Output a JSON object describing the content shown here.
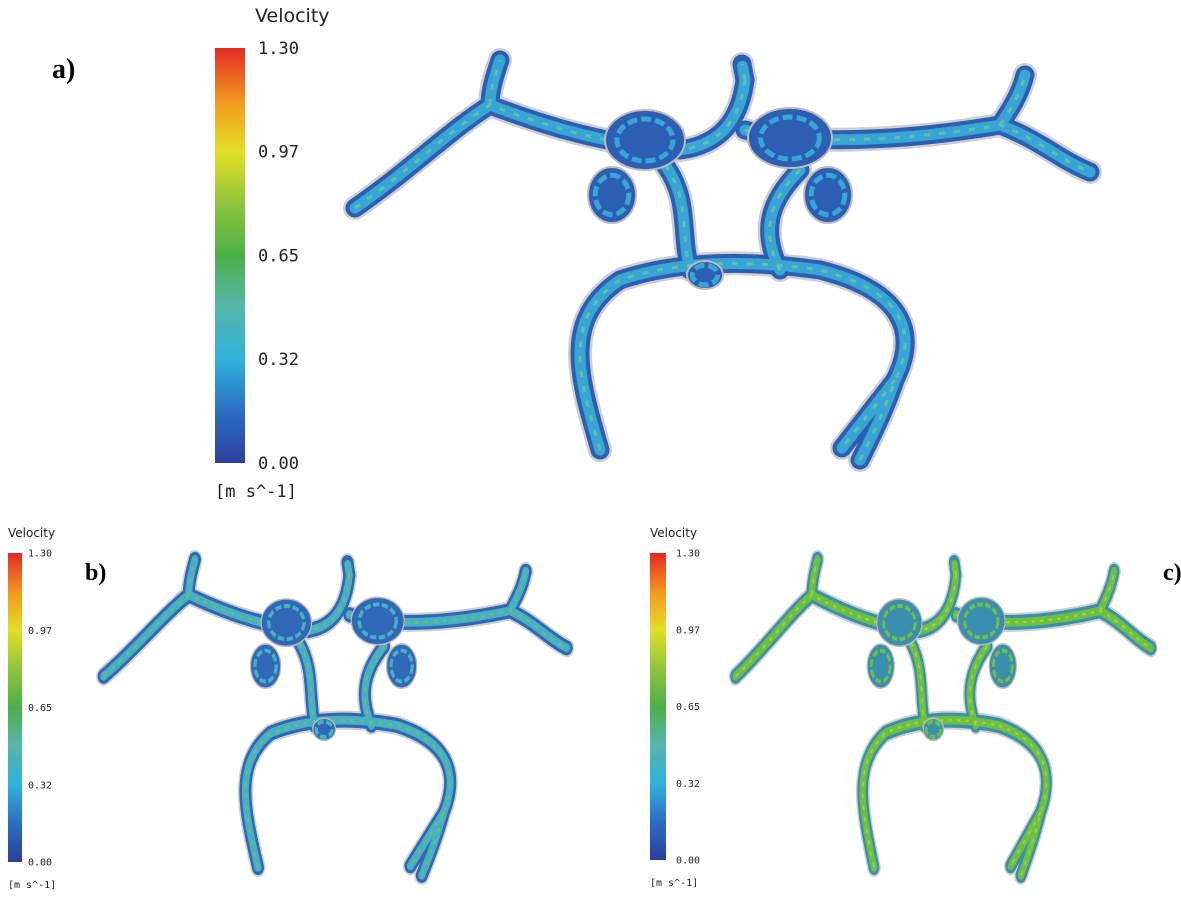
{
  "panels": [
    {
      "label": "a)",
      "legend": {
        "title": "Velocity",
        "ticks": [
          "1.30",
          "0.97",
          "0.65",
          "0.32",
          "0.00"
        ],
        "unit": "[m  s^-1]"
      }
    },
    {
      "label": "b)",
      "legend": {
        "title": "Velocity",
        "ticks": [
          "1.30",
          "0.97",
          "0.65",
          "0.32",
          "0.00"
        ],
        "unit": "[m  s^-1]"
      }
    },
    {
      "label": "c)",
      "legend": {
        "title": "Velocity",
        "ticks": [
          "1.30",
          "0.97",
          "0.65",
          "0.32",
          "0.00"
        ],
        "unit": "[m  s^-1]"
      }
    }
  ]
}
